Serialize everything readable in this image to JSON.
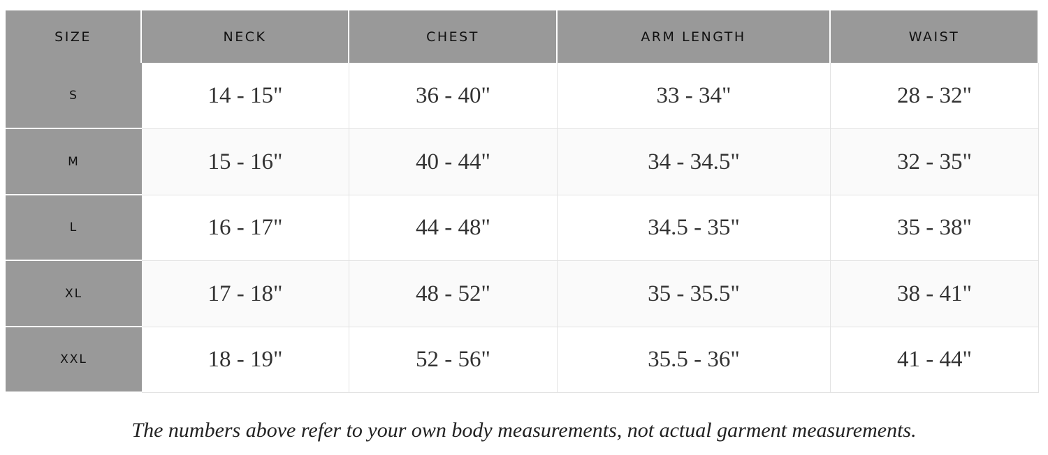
{
  "table": {
    "header": [
      "SIZE",
      "NECK",
      "CHEST",
      "ARM LENGTH",
      "WAIST"
    ],
    "rows": [
      [
        "S",
        "14 - 15\"",
        "36 - 40\"",
        "33 - 34\"",
        "28 - 32\""
      ],
      [
        "M",
        "15 - 16\"",
        "40 - 44\"",
        "34 - 34.5\"",
        "32 - 35\""
      ],
      [
        "L",
        "16 - 17\"",
        "44 - 48\"",
        "34.5 - 35\"",
        "35 - 38\""
      ],
      [
        "XL",
        "17 - 18\"",
        "48 - 52\"",
        "35 - 35.5\"",
        "38 - 41\""
      ],
      [
        "XXL",
        "18 - 19\"",
        "52 - 56\"",
        "35.5 - 36\"",
        "41 - 44\""
      ]
    ]
  },
  "note": "The numbers above refer to your own body measurements, not actual garment measurements."
}
